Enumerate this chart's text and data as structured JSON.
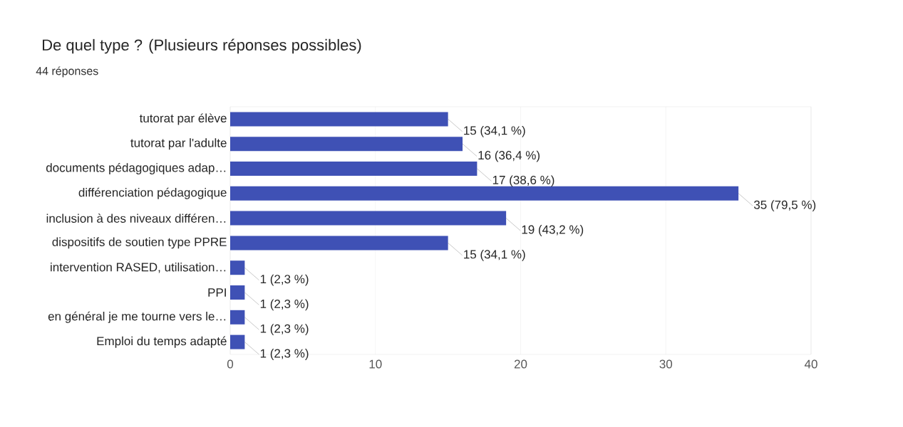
{
  "chart_data": {
    "type": "bar",
    "orientation": "horizontal",
    "title": "De quel type ? (Plusieurs réponses possibles)",
    "subtitle": "44 réponses",
    "categories": [
      "tutorat par élève",
      "tutorat par l'adulte",
      "documents pédagogiques adap…",
      "différenciation pédagogique",
      "inclusion à des niveaux différen…",
      "dispositifs de soutien type PPRE",
      "intervention RASED, utilisation…",
      "PPI",
      "en général je me tourne vers le…",
      "Emploi du temps adapté"
    ],
    "values": [
      15,
      16,
      17,
      35,
      19,
      15,
      1,
      1,
      1,
      1
    ],
    "value_labels": [
      "15 (34,1 %)",
      "16 (36,4 %)",
      "17 (38,6 %)",
      "35 (79,5 %)",
      "19 (43,2 %)",
      "15 (34,1 %)",
      "1 (2,3 %)",
      "1 (2,3 %)",
      "1 (2,3 %)",
      "1 (2,3 %)"
    ],
    "color": "#3f51b5",
    "xlim": [
      0,
      40
    ],
    "xticks": [
      0,
      10,
      20,
      30,
      40
    ],
    "grid": "x"
  }
}
